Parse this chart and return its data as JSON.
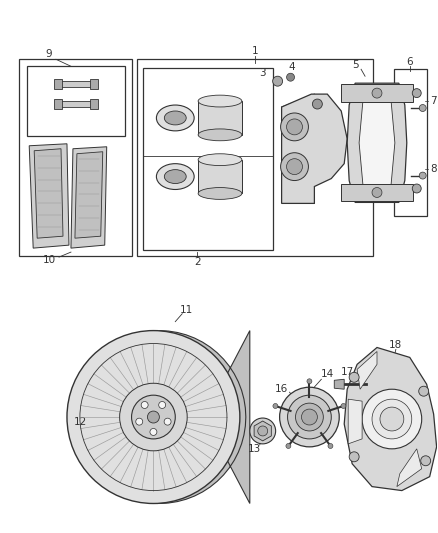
{
  "background_color": "#ffffff",
  "fig_width": 4.38,
  "fig_height": 5.33,
  "dpi": 100,
  "line_color": "#333333",
  "light_color": "#888888",
  "label_fontsize": 7.5
}
